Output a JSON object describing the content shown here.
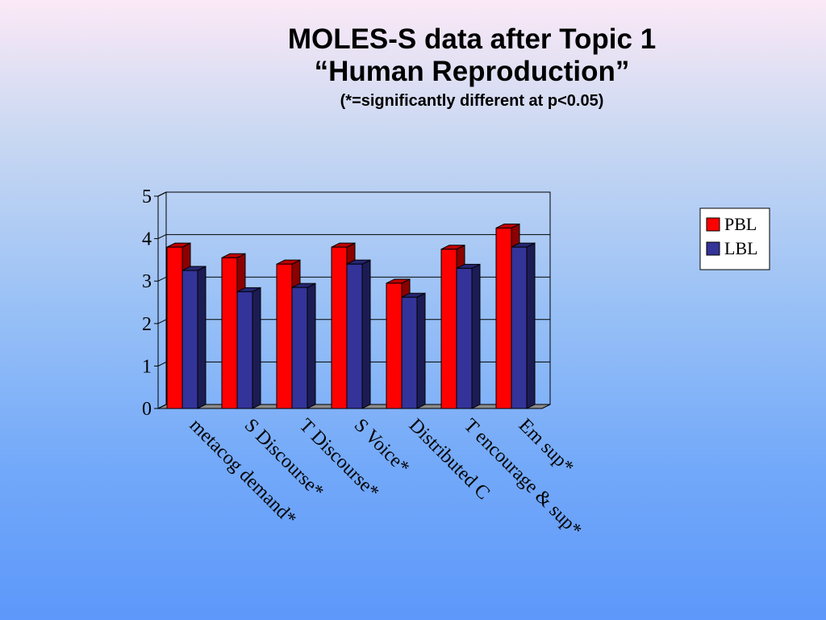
{
  "slide": {
    "title_line1": "MOLES-S data after Topic 1",
    "title_line2": "“Human Reproduction”",
    "title_line3": "(*=significantly different at p<0.05)"
  },
  "chart_data": {
    "type": "bar",
    "title": "",
    "xlabel": "",
    "ylabel": "",
    "ylim": [
      0,
      5
    ],
    "yticks": [
      "0",
      "1",
      "2",
      "3",
      "4",
      "5"
    ],
    "categories": [
      "metacog demand*",
      "S Discourse*",
      "T Discourse*",
      "S Voice*",
      "Distributed C",
      "T encourage & sup*",
      "Em sup*"
    ],
    "series": [
      {
        "name": "PBL",
        "color": "#ff0000",
        "values": [
          3.8,
          3.55,
          3.4,
          3.8,
          2.95,
          3.75,
          4.25
        ]
      },
      {
        "name": "LBL",
        "color": "#333399",
        "values": [
          3.25,
          2.75,
          2.85,
          3.4,
          2.62,
          3.3,
          3.8
        ]
      }
    ],
    "grid": true,
    "legend": "right"
  }
}
